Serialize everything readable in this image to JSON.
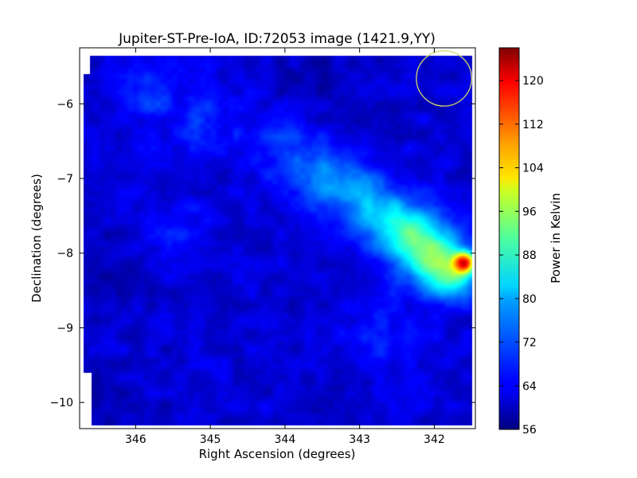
{
  "chart_data": {
    "type": "heatmap",
    "title": "Jupiter-ST-Pre-IoA, ID:72053 image (1421.9,YY)",
    "xlabel": "Right Ascension (degrees)",
    "ylabel": "Declination (degrees)",
    "xlim": [
      346.75,
      341.45
    ],
    "ylim": [
      -10.35,
      -5.25
    ],
    "xticks": [
      346,
      345,
      344,
      343,
      342
    ],
    "yticks": [
      -6,
      -7,
      -8,
      -9,
      -10
    ],
    "colorbar": {
      "label": "Power in Kelvin",
      "range": [
        56,
        126
      ],
      "ticks": [
        56,
        64,
        72,
        80,
        88,
        96,
        104,
        112,
        120
      ],
      "colormap": "jet"
    },
    "circle": {
      "center_ra": 341.87,
      "center_dec": -5.66,
      "radius_deg": 0.37,
      "color": "#d4d46a"
    },
    "background_level": 62,
    "features": [
      {
        "ra": 345.9,
        "dec": -5.9,
        "sigma": 0.25,
        "amp": 7
      },
      {
        "ra": 345.1,
        "dec": -6.2,
        "sigma": 0.35,
        "amp": 5
      },
      {
        "ra": 344.0,
        "dec": -6.6,
        "sigma": 0.35,
        "amp": 6
      },
      {
        "ra": 343.5,
        "dec": -7.0,
        "sigma": 0.3,
        "amp": 10
      },
      {
        "ra": 343.0,
        "dec": -7.2,
        "sigma": 0.3,
        "amp": 8
      },
      {
        "ra": 342.7,
        "dec": -7.5,
        "sigma": 0.3,
        "amp": 10
      },
      {
        "ra": 342.3,
        "dec": -7.75,
        "sigma": 0.3,
        "amp": 17
      },
      {
        "ra": 342.0,
        "dec": -8.05,
        "sigma": 0.3,
        "amp": 20
      },
      {
        "ra": 341.75,
        "dec": -8.35,
        "sigma": 0.22,
        "amp": 16
      },
      {
        "ra": 341.6,
        "dec": -8.12,
        "sigma": 0.1,
        "amp": 40
      },
      {
        "ra": 345.4,
        "dec": -7.6,
        "sigma": 0.3,
        "amp": 4
      },
      {
        "ra": 342.7,
        "dec": -9.1,
        "sigma": 0.35,
        "amp": 4
      },
      {
        "ra": 346.4,
        "dec": -8.3,
        "sigma": 0.3,
        "amp": -3
      },
      {
        "ra": 343.5,
        "dec": -5.7,
        "sigma": 0.5,
        "amp": -2
      },
      {
        "ra": 346.4,
        "dec": -10.1,
        "sigma": 0.4,
        "amp": -2
      }
    ]
  }
}
